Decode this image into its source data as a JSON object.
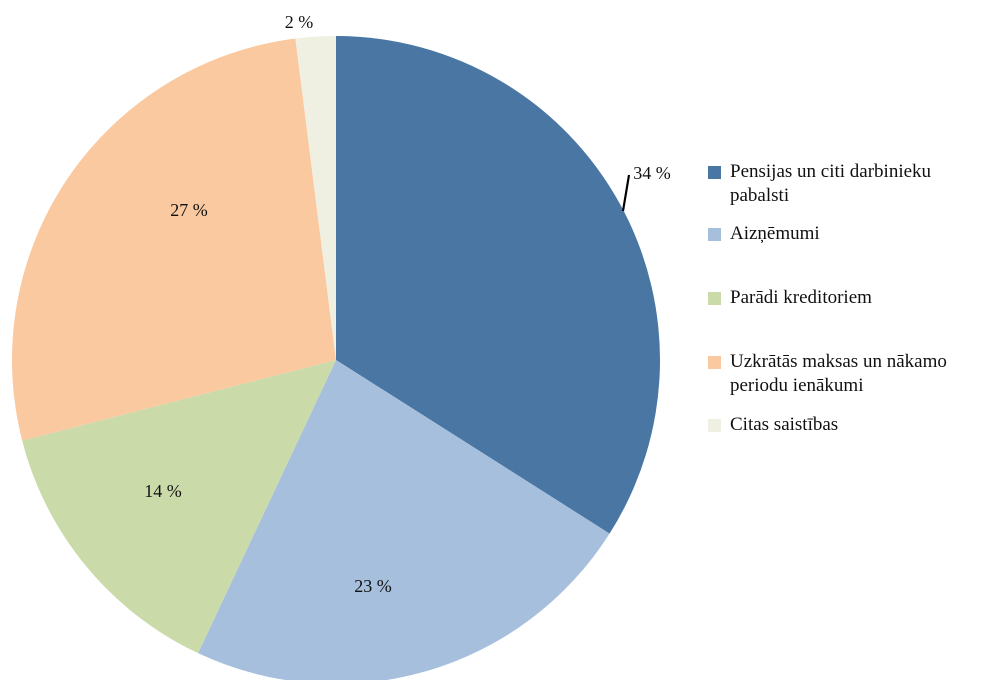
{
  "chart_data": {
    "type": "pie",
    "title": "",
    "slices": [
      {
        "label": "Pensijas un citi darbinieku pabalsti",
        "value": 34,
        "display": "34 %",
        "color": "#4a76a4"
      },
      {
        "label": "Aizņēmumi",
        "value": 23,
        "display": "23 %",
        "color": "#a6bfdd"
      },
      {
        "label": "Parādi kreditoriem",
        "value": 14,
        "display": "14 %",
        "color": "#cadba9"
      },
      {
        "label": "Uzkrātās maksas un nākamo periodu ienākumi",
        "value": 27,
        "display": "27 %",
        "color": "#fac9a0"
      },
      {
        "label": "Citas saistības",
        "value": 2,
        "display": "2 %",
        "color": "#eff0e2"
      }
    ],
    "start_angle": "12 o'clock",
    "direction": "clockwise",
    "legend_position": "right"
  }
}
